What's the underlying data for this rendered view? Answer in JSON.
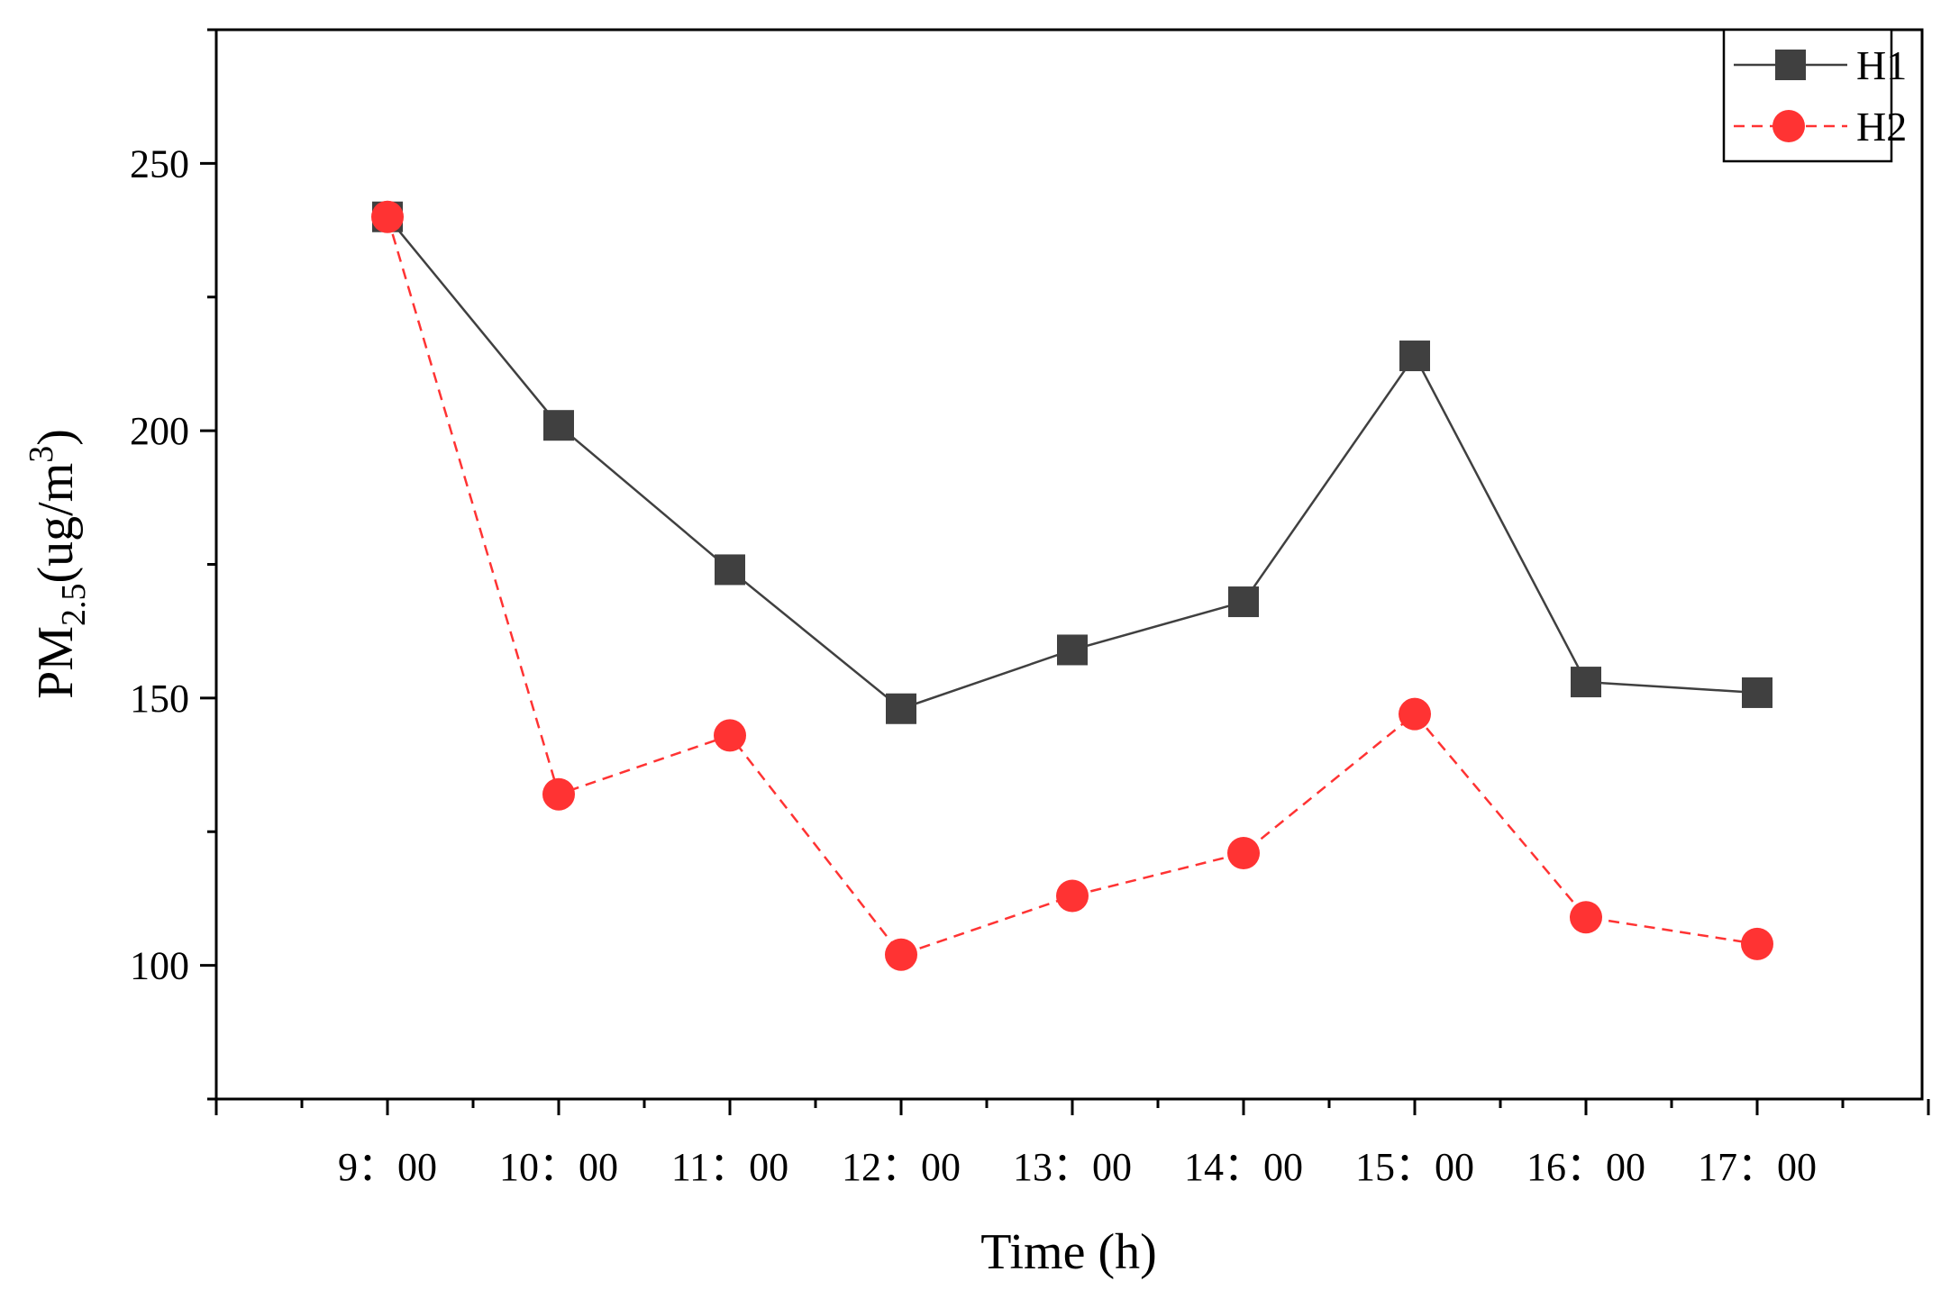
{
  "chart_data": {
    "type": "line",
    "title": "",
    "xlabel": "Time (h)",
    "ylabel": {
      "prefix": "PM",
      "subscript": "2.5",
      "unit_open": "(ug/m",
      "superscript": "3",
      "unit_close": ")"
    },
    "categories": [
      "9：00",
      "10：00",
      "11：00",
      "12：00",
      "13：00",
      "14：00",
      "15：00",
      "16：00",
      "17：00"
    ],
    "ylim": [
      75,
      275
    ],
    "yticks": [
      100,
      150,
      200,
      250
    ],
    "grid": false,
    "legend_position": "top-right",
    "series": [
      {
        "name": "H1",
        "color": "#404040",
        "marker": "square",
        "line": "solid",
        "values": [
          240,
          201,
          174,
          148,
          159,
          168,
          214,
          153,
          151
        ]
      },
      {
        "name": "H2",
        "color": "#ff3333",
        "marker": "circle",
        "line": "dashed",
        "values": [
          240,
          132,
          143,
          102,
          113,
          121,
          147,
          109,
          104
        ]
      }
    ]
  }
}
